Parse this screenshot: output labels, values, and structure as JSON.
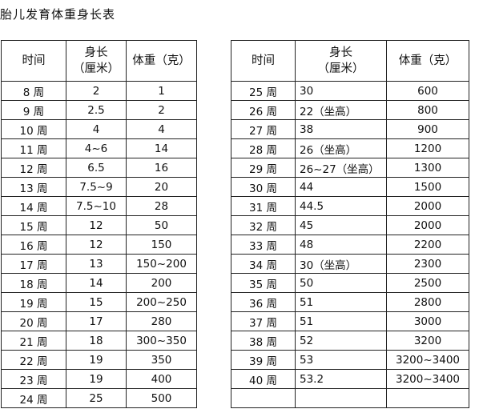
{
  "title": "胎儿发育体重身长表",
  "headers": {
    "time": "时间",
    "length_line1": "身长",
    "length_line2": "（厘米）",
    "weight": "体重（克）"
  },
  "left_table": [
    {
      "week": "8 周",
      "length": "2",
      "weight": "1"
    },
    {
      "week": "9 周",
      "length": "2.5",
      "weight": "2"
    },
    {
      "week": "10 周",
      "length": "4",
      "weight": "4"
    },
    {
      "week": "11 周",
      "length": "4~6",
      "weight": "14"
    },
    {
      "week": "12 周",
      "length": "6.5",
      "weight": "16"
    },
    {
      "week": "13 周",
      "length": "7.5~9",
      "weight": "20"
    },
    {
      "week": "14 周",
      "length": "7.5~10",
      "weight": "28"
    },
    {
      "week": "15 周",
      "length": "12",
      "weight": "50"
    },
    {
      "week": "16 周",
      "length": "12",
      "weight": "150"
    },
    {
      "week": "17 周",
      "length": "13",
      "weight": "150~200"
    },
    {
      "week": "18 周",
      "length": "14",
      "weight": "200"
    },
    {
      "week": "19 周",
      "length": "15",
      "weight": "200~250"
    },
    {
      "week": "20 周",
      "length": "17",
      "weight": "280"
    },
    {
      "week": "21 周",
      "length": "18",
      "weight": "300~350"
    },
    {
      "week": "22 周",
      "length": "19",
      "weight": "350"
    },
    {
      "week": "23 周",
      "length": "19",
      "weight": "400"
    },
    {
      "week": "24 周",
      "length": "25",
      "weight": "500"
    }
  ],
  "right_table": [
    {
      "week": "25 周",
      "length": "30",
      "weight": "600"
    },
    {
      "week": "26 周",
      "length": "22（坐高）",
      "weight": "800"
    },
    {
      "week": "27 周",
      "length": "38",
      "weight": "900"
    },
    {
      "week": "28 周",
      "length": "26（坐高）",
      "weight": "1200"
    },
    {
      "week": "29 周",
      "length": "26~27（坐高）",
      "weight": "1300"
    },
    {
      "week": "30 周",
      "length": "44",
      "weight": "1500"
    },
    {
      "week": "31 周",
      "length": "44.5",
      "weight": "2000"
    },
    {
      "week": "32 周",
      "length": "45",
      "weight": "2000"
    },
    {
      "week": "33 周",
      "length": "48",
      "weight": "2200"
    },
    {
      "week": "34 周",
      "length": "30（坐高）",
      "weight": "2300"
    },
    {
      "week": "35 周",
      "length": "50",
      "weight": "2500"
    },
    {
      "week": "36 周",
      "length": "51",
      "weight": "2800"
    },
    {
      "week": "37 周",
      "length": "51",
      "weight": "3000"
    },
    {
      "week": "38 周",
      "length": "52",
      "weight": "3200"
    },
    {
      "week": "39 周",
      "length": "53",
      "weight": "3200~3400"
    },
    {
      "week": "40 周",
      "length": "53.2",
      "weight": "3200~3400"
    },
    {
      "week": "",
      "length": "",
      "weight": ""
    }
  ]
}
